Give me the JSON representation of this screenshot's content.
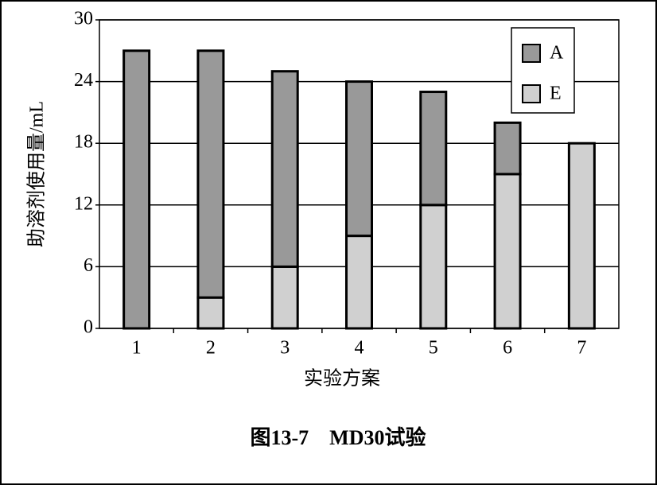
{
  "chart_data": {
    "type": "stacked-bar",
    "title": "图13-7　MD30试验",
    "x_label": "实验方案",
    "y_label": "助溶剂使用量/mL",
    "categories": [
      "1",
      "2",
      "3",
      "4",
      "5",
      "6",
      "7"
    ],
    "series": [
      {
        "name": "A",
        "color": "#999999",
        "values": [
          27,
          24,
          19,
          15,
          11,
          5,
          0
        ]
      },
      {
        "name": "E",
        "color": "#d0d0d0",
        "values": [
          0,
          3,
          6,
          9,
          12,
          15,
          18
        ]
      }
    ],
    "stack_order": [
      "E",
      "A"
    ],
    "ylim": [
      0,
      30
    ],
    "yticks": [
      0,
      6,
      12,
      18,
      24,
      30
    ],
    "grid": true,
    "legend": "top-right"
  }
}
